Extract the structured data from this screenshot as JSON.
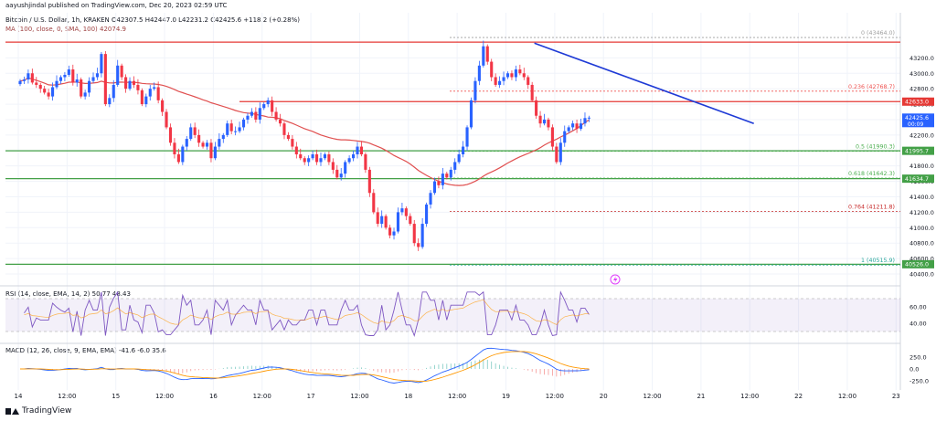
{
  "header": {
    "published": "aayushjindal published on TradingView.com, Dec 20, 2023 02:59 UTC",
    "symbol_line": "Bitcoin / U.S. Dollar, 1h, KRAKEN  O42307.5  H42447.0  L42231.2  C42425.6  +118.2 (+0.28%)",
    "ma_line": "MA (100, close, 0, SMA, 100)  42074.9",
    "rsi_line": "RSI (14, close, EMA, 14, 2)  50.77  48.43",
    "macd_line": "MACD (12, 26, close, 9, EMA, EMA)  -41.6  -6.0  35.6"
  },
  "footer": {
    "brand": "TradingView"
  },
  "colors": {
    "up": "#2962ff",
    "down": "#f23645",
    "ma": "#e05050",
    "resistance": "#e53935",
    "support": "#43a047",
    "trendline": "#1e3ad6",
    "rsi": "#7e57c2",
    "signal": "#ff9800"
  },
  "chart_data": {
    "type": "candlestick",
    "title": "Bitcoin / U.S. Dollar, 1h, KRAKEN",
    "ylim": [
      40400,
      43500
    ],
    "price_ticks": [
      "43200.0",
      "43000.0",
      "42800.0",
      "42600.0",
      "42400.0",
      "42200.0",
      "42000.0",
      "41800.0",
      "41600.0",
      "41400.0",
      "41200.0",
      "41000.0",
      "40800.0",
      "40600.0",
      "40400.0"
    ],
    "x_ticks": [
      "14",
      "12:00",
      "15",
      "12:00",
      "16",
      "12:00",
      "17",
      "12:00",
      "18",
      "12:00",
      "19",
      "12:00",
      "20",
      "12:00",
      "21",
      "12:00",
      "22",
      "12:00",
      "23"
    ],
    "price_labels": [
      {
        "label": "42633.0",
        "value": 42633,
        "color": "#e53935"
      },
      {
        "label": "42425.6",
        "sub": "00:09",
        "value": 42425.6,
        "color": "#2962ff"
      },
      {
        "label": "41995.7",
        "value": 41995.7,
        "color": "#43a047"
      },
      {
        "label": "41634.7",
        "value": 41634.7,
        "color": "#43a047"
      },
      {
        "label": "40526.0",
        "value": 40526,
        "color": "#43a047"
      }
    ],
    "fib_levels": [
      {
        "label": "0 (43464.0)",
        "value": 43464,
        "color": "#9e9e9e"
      },
      {
        "label": "0.236 (42768.7)",
        "value": 42768.7,
        "color": "#ef5350"
      },
      {
        "label": "0.5 (41990.3)",
        "value": 41990.3,
        "color": "#4caf50"
      },
      {
        "label": "0.618 (41642.3)",
        "value": 41642.3,
        "color": "#4caf50"
      },
      {
        "label": "0.764 (41211.8)",
        "value": 41211.8,
        "color": "#c62828"
      },
      {
        "label": "1 (40515.9)",
        "value": 40515.9,
        "color": "#26a69a"
      }
    ],
    "horizontal_lines": [
      {
        "name": "resistance-top",
        "value": 43404,
        "color": "#e53935"
      },
      {
        "name": "resistance-mid",
        "value": 42633,
        "color": "#e53935"
      },
      {
        "name": "support-1",
        "value": 41995.7,
        "color": "#43a047"
      },
      {
        "name": "support-2",
        "value": 41634.7,
        "color": "#43a047"
      },
      {
        "name": "support-3",
        "value": 40526,
        "color": "#43a047"
      }
    ],
    "trendline": {
      "from_hour": 127,
      "from_value": 43390,
      "to_hour": 181,
      "to_value": 42350
    },
    "candle_closes": [
      42900,
      42920,
      43000,
      42880,
      42850,
      42800,
      42750,
      42700,
      42820,
      42900,
      42950,
      42980,
      43050,
      42880,
      42920,
      42700,
      42750,
      42900,
      42950,
      43000,
      43250,
      42600,
      42680,
      42850,
      43100,
      42950,
      42800,
      42900,
      42850,
      42780,
      42600,
      42700,
      42800,
      42820,
      42650,
      42500,
      42300,
      42100,
      41950,
      41850,
      42050,
      42150,
      42300,
      42200,
      42100,
      42050,
      42100,
      41900,
      42050,
      42150,
      42200,
      42350,
      42250,
      42250,
      42300,
      42400,
      42450,
      42500,
      42400,
      42550,
      42600,
      42650,
      42500,
      42400,
      42350,
      42200,
      42150,
      42050,
      41950,
      41900,
      41850,
      41900,
      41950,
      41850,
      41900,
      41950,
      41850,
      41750,
      41650,
      41700,
      41850,
      41900,
      41950,
      42050,
      41950,
      41750,
      41450,
      41200,
      41050,
      41150,
      41000,
      40900,
      40950,
      41200,
      41250,
      41150,
      41050,
      40800,
      40750,
      41050,
      41300,
      41450,
      41600,
      41550,
      41700,
      41650,
      41750,
      41850,
      41950,
      42050,
      42300,
      42650,
      42900,
      43100,
      43350,
      43150,
      42950,
      42850,
      42900,
      42950,
      43000,
      42950,
      43050,
      43000,
      42950,
      42850,
      42650,
      42450,
      42350,
      42400,
      42300,
      42050,
      41850,
      42100,
      42250,
      42300,
      42350,
      42280,
      42350,
      42420,
      42425.6
    ],
    "ma100_hint": "smooth red moving average",
    "rsi": {
      "label": "RSI (14, close, EMA, 14, 2)",
      "value": 50.77,
      "signal": 48.43,
      "ticks": [
        "60.00",
        "40.00"
      ],
      "band": [
        30,
        70
      ]
    },
    "macd": {
      "label": "MACD (12, 26, close, 9, EMA, EMA)",
      "histogram": -41.6,
      "macd": -6.0,
      "signal": 35.6,
      "ticks": [
        "250.0",
        "0.0",
        "-250.0"
      ]
    }
  }
}
